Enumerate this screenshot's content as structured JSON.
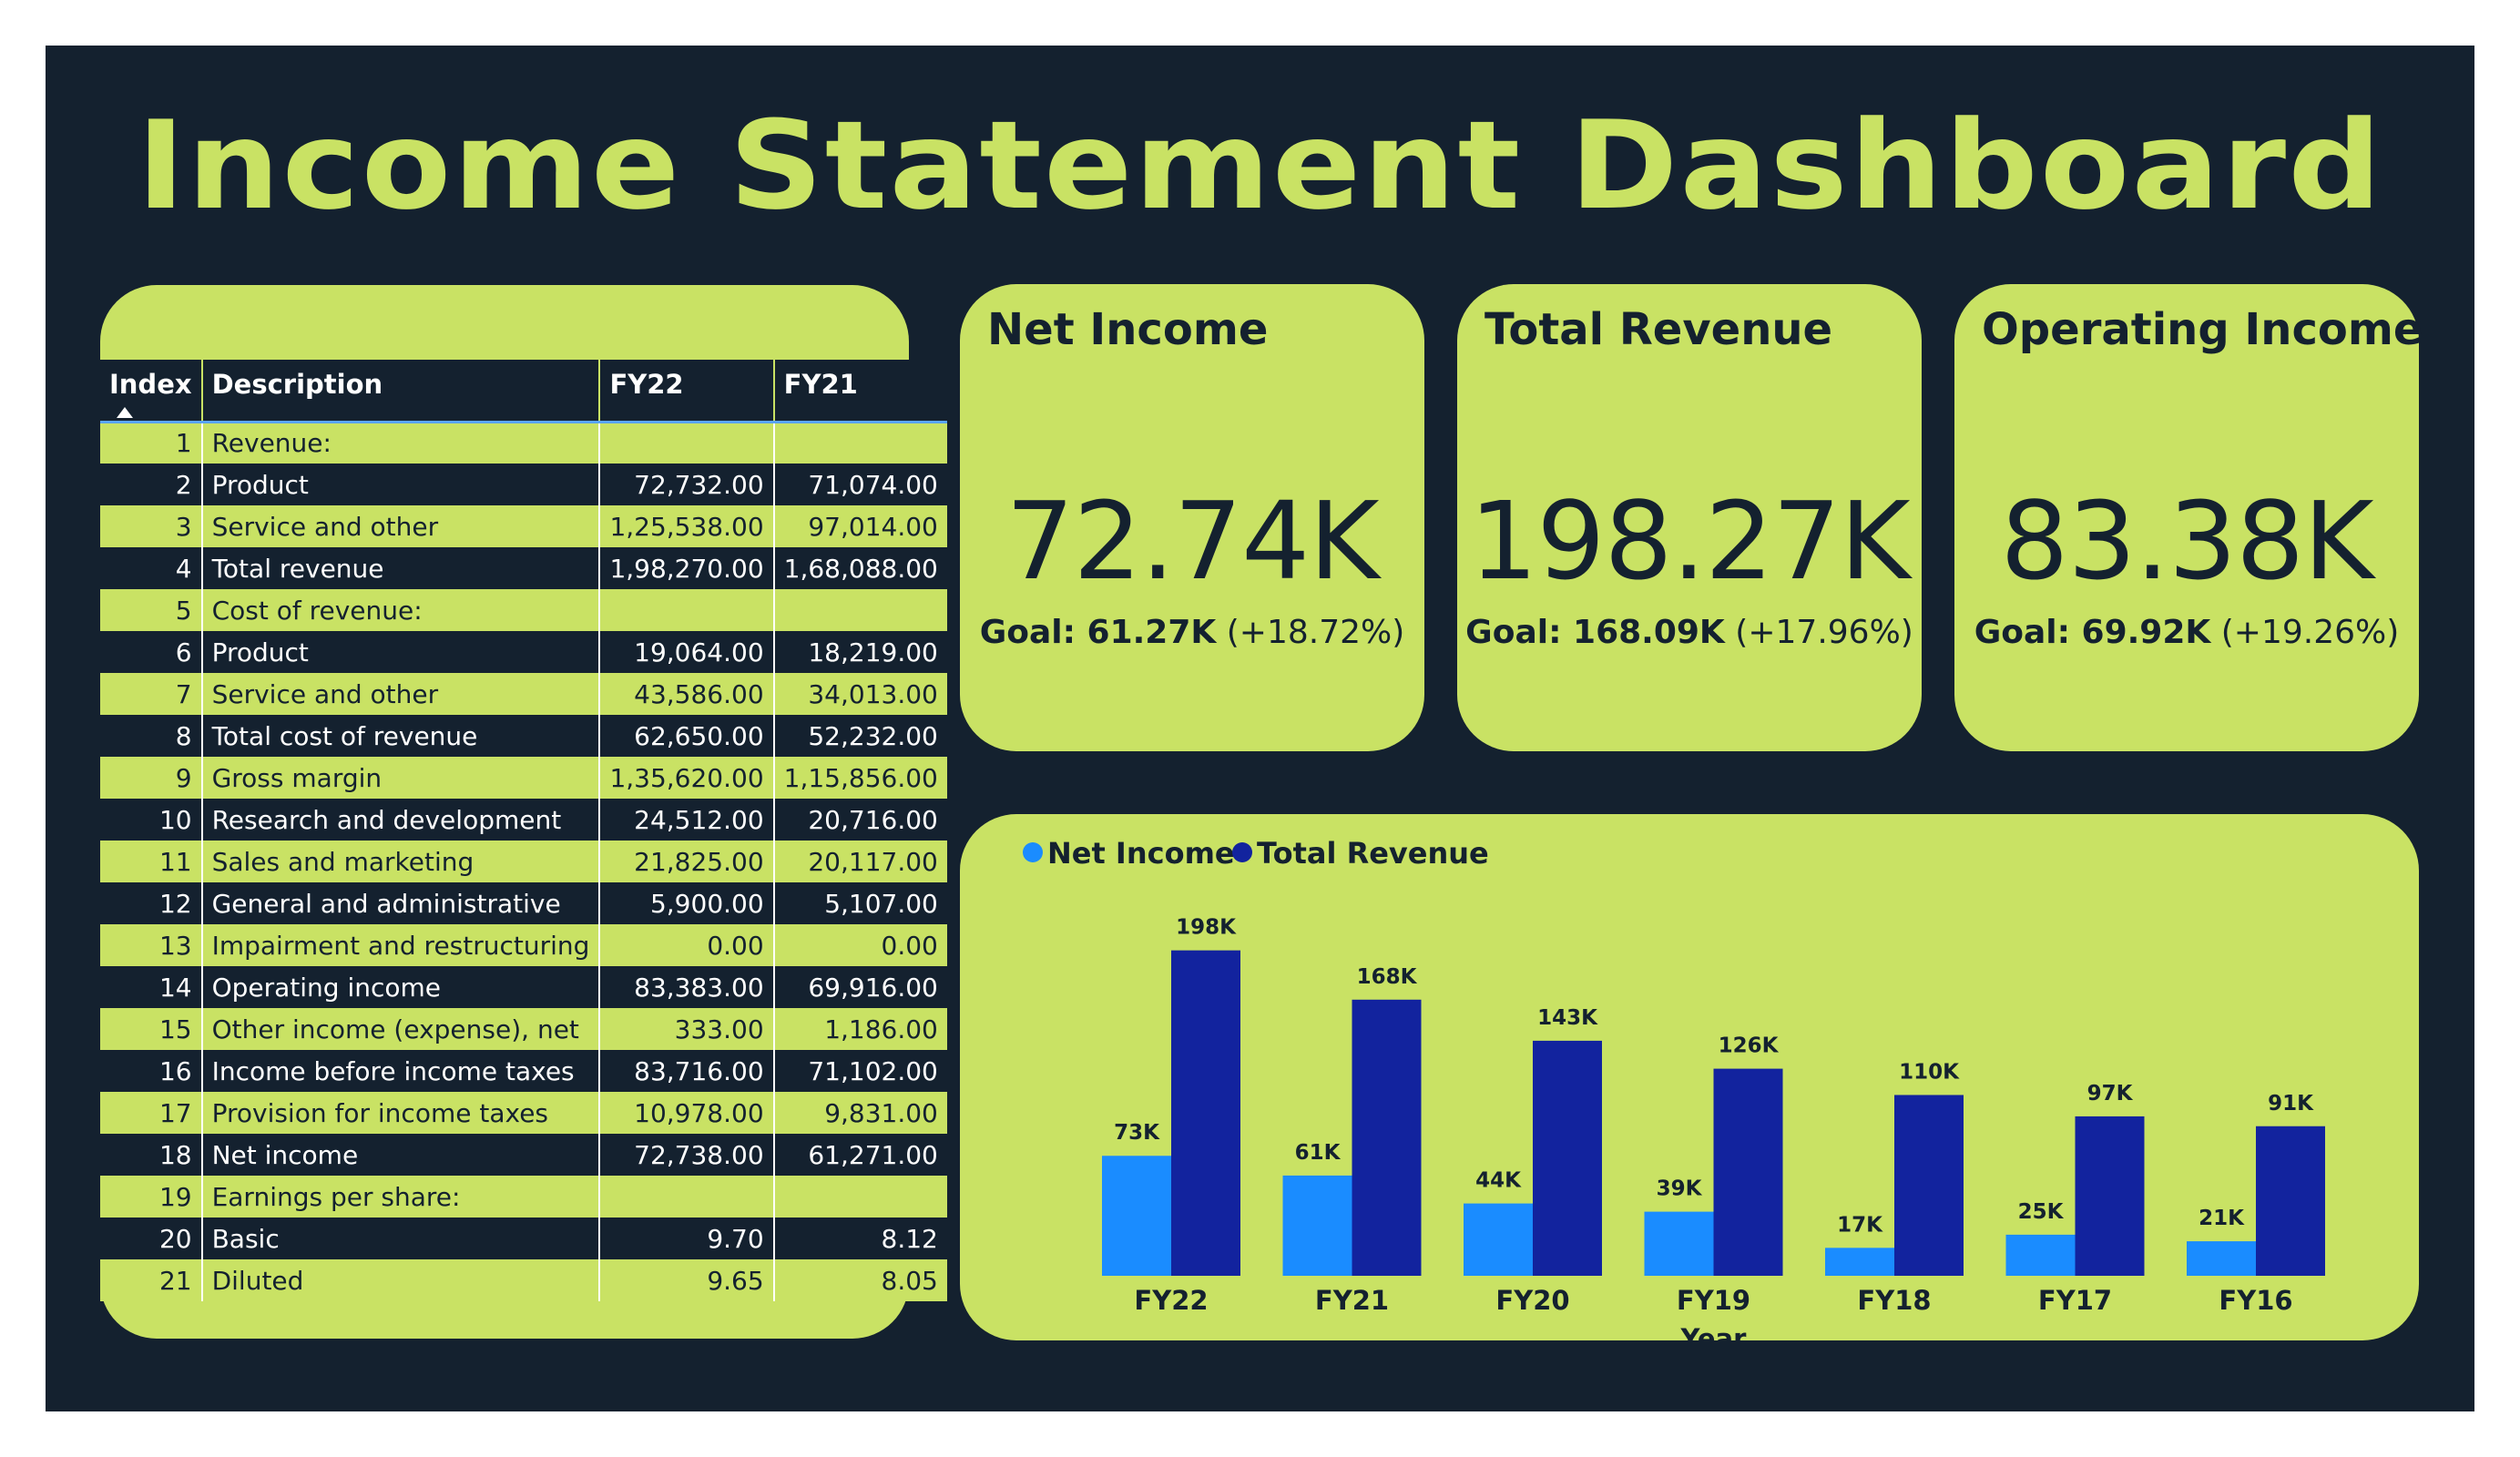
{
  "title": "Income Statement Dashboard",
  "table": {
    "columns": [
      "Index",
      "Description",
      "FY22",
      "FY21"
    ],
    "rows": [
      {
        "index": "1",
        "description": "Revenue:",
        "fy22": "",
        "fy21": ""
      },
      {
        "index": "2",
        "description": "Product",
        "fy22": "72,732.00",
        "fy21": "71,074.00"
      },
      {
        "index": "3",
        "description": "Service and other",
        "fy22": "1,25,538.00",
        "fy21": "97,014.00"
      },
      {
        "index": "4",
        "description": "Total revenue",
        "fy22": "1,98,270.00",
        "fy21": "1,68,088.00"
      },
      {
        "index": "5",
        "description": "Cost of revenue:",
        "fy22": "",
        "fy21": ""
      },
      {
        "index": "6",
        "description": "Product",
        "fy22": "19,064.00",
        "fy21": "18,219.00"
      },
      {
        "index": "7",
        "description": "Service and other",
        "fy22": "43,586.00",
        "fy21": "34,013.00"
      },
      {
        "index": "8",
        "description": "Total cost of revenue",
        "fy22": "62,650.00",
        "fy21": "52,232.00"
      },
      {
        "index": "9",
        "description": "Gross margin",
        "fy22": "1,35,620.00",
        "fy21": "1,15,856.00"
      },
      {
        "index": "10",
        "description": "Research and development",
        "fy22": "24,512.00",
        "fy21": "20,716.00"
      },
      {
        "index": "11",
        "description": "Sales and marketing",
        "fy22": "21,825.00",
        "fy21": "20,117.00"
      },
      {
        "index": "12",
        "description": "General and administrative",
        "fy22": "5,900.00",
        "fy21": "5,107.00"
      },
      {
        "index": "13",
        "description": "Impairment and restructuring",
        "fy22": "0.00",
        "fy21": "0.00"
      },
      {
        "index": "14",
        "description": "Operating income",
        "fy22": "83,383.00",
        "fy21": "69,916.00"
      },
      {
        "index": "15",
        "description": "Other income (expense), net",
        "fy22": "333.00",
        "fy21": "1,186.00"
      },
      {
        "index": "16",
        "description": "Income before income taxes",
        "fy22": "83,716.00",
        "fy21": "71,102.00"
      },
      {
        "index": "17",
        "description": "Provision for income taxes",
        "fy22": "10,978.00",
        "fy21": "9,831.00"
      },
      {
        "index": "18",
        "description": "Net income",
        "fy22": "72,738.00",
        "fy21": "61,271.00"
      },
      {
        "index": "19",
        "description": "Earnings per share:",
        "fy22": "",
        "fy21": ""
      },
      {
        "index": "20",
        "description": "Basic",
        "fy22": "9.70",
        "fy21": "8.12"
      },
      {
        "index": "21",
        "description": "Diluted",
        "fy22": "9.65",
        "fy21": "8.05"
      }
    ]
  },
  "kpis": [
    {
      "title": "Net Income",
      "value": "72.74K",
      "goal_label": "Goal: 61.27K",
      "delta": "(+18.72%)"
    },
    {
      "title": "Total Revenue",
      "value": "198.27K",
      "goal_label": "Goal: 168.09K",
      "delta": "(+17.96%)"
    },
    {
      "title": "Operating Income",
      "value": "83.38K",
      "goal_label": "Goal: 69.92K",
      "delta": "(+19.26%)"
    }
  ],
  "colors": {
    "background": "#14212f",
    "panel": "#c9e264",
    "net_income": "#1a8cff",
    "total_revenue": "#12239e"
  },
  "chart_data": {
    "type": "bar",
    "categories": [
      "FY22",
      "FY21",
      "FY20",
      "FY19",
      "FY18",
      "FY17",
      "FY16"
    ],
    "xlabel": "Year",
    "ylabel": "",
    "legend_position": "top-left",
    "grid": false,
    "ylim": [
      0,
      205000
    ],
    "series": [
      {
        "name": "Net Income",
        "color": "#1a8cff",
        "values": [
          73000,
          61000,
          44000,
          39000,
          17000,
          25000,
          21000
        ],
        "labels": [
          "73K",
          "61K",
          "44K",
          "39K",
          "17K",
          "25K",
          "21K"
        ]
      },
      {
        "name": "Total Revenue",
        "color": "#12239e",
        "values": [
          198000,
          168000,
          143000,
          126000,
          110000,
          97000,
          91000
        ],
        "labels": [
          "198K",
          "168K",
          "143K",
          "126K",
          "110K",
          "97K",
          "91K"
        ]
      }
    ]
  }
}
